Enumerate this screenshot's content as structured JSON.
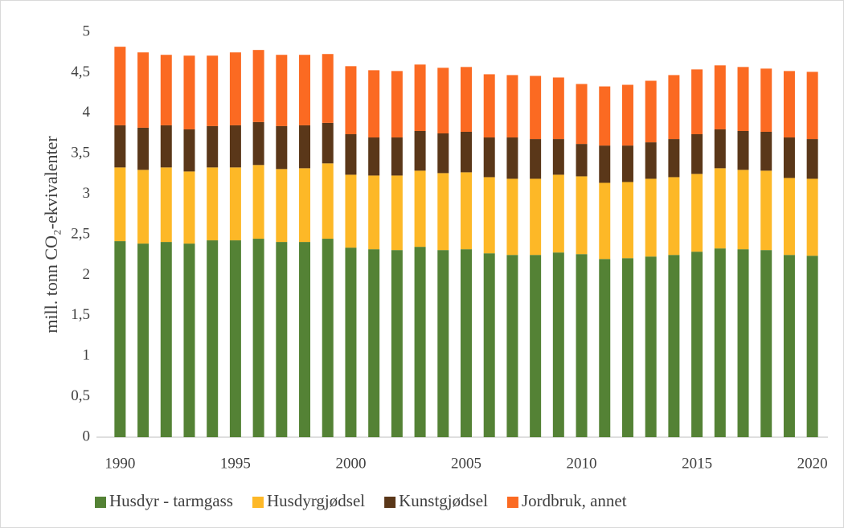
{
  "chart_data": {
    "type": "stacked-bar",
    "y_label": "mill. tonn CO₂-ekvivalenter",
    "categories": [
      "1990",
      null,
      null,
      null,
      null,
      "1995",
      null,
      null,
      null,
      null,
      "2000",
      null,
      null,
      null,
      null,
      "2005",
      null,
      null,
      null,
      null,
      "2010",
      null,
      null,
      null,
      null,
      "2015",
      null,
      null,
      null,
      null,
      "2020"
    ],
    "series": [
      {
        "name": "Husdyr - tarmgass",
        "color": "#548235",
        "values": [
          2.42,
          2.39,
          2.41,
          2.39,
          2.43,
          2.43,
          2.45,
          2.41,
          2.41,
          2.45,
          2.34,
          2.32,
          2.31,
          2.35,
          2.31,
          2.32,
          2.27,
          2.25,
          2.25,
          2.28,
          2.26,
          2.2,
          2.21,
          2.23,
          2.25,
          2.29,
          2.33,
          2.32,
          2.31,
          2.25,
          2.24
        ]
      },
      {
        "name": "Husdyrgjødsel",
        "color": "#fdb827",
        "values": [
          0.91,
          0.91,
          0.92,
          0.89,
          0.9,
          0.9,
          0.91,
          0.9,
          0.91,
          0.93,
          0.9,
          0.91,
          0.92,
          0.94,
          0.95,
          0.95,
          0.94,
          0.94,
          0.94,
          0.96,
          0.96,
          0.94,
          0.94,
          0.96,
          0.96,
          0.96,
          0.99,
          0.98,
          0.98,
          0.95,
          0.95
        ]
      },
      {
        "name": "Kunstgjødsel",
        "color": "#5a3719",
        "values": [
          0.52,
          0.52,
          0.52,
          0.52,
          0.51,
          0.52,
          0.53,
          0.53,
          0.53,
          0.5,
          0.5,
          0.47,
          0.47,
          0.49,
          0.49,
          0.5,
          0.49,
          0.51,
          0.49,
          0.44,
          0.4,
          0.46,
          0.45,
          0.45,
          0.47,
          0.49,
          0.48,
          0.48,
          0.48,
          0.5,
          0.49
        ]
      },
      {
        "name": "Jordbruk, annet",
        "color": "#fb6a22",
        "values": [
          0.97,
          0.93,
          0.87,
          0.91,
          0.87,
          0.9,
          0.89,
          0.88,
          0.87,
          0.85,
          0.84,
          0.83,
          0.82,
          0.82,
          0.81,
          0.8,
          0.78,
          0.77,
          0.78,
          0.76,
          0.74,
          0.73,
          0.75,
          0.76,
          0.79,
          0.8,
          0.79,
          0.79,
          0.78,
          0.82,
          0.83
        ]
      }
    ],
    "ylim": [
      0,
      5
    ],
    "yticks": [
      0,
      {
        "value": 0.5,
        "label": "0,5"
      },
      1,
      {
        "value": 1.5,
        "label": "1,5"
      },
      2,
      {
        "value": 2.5,
        "label": "2,5"
      },
      3,
      {
        "value": 3.5,
        "label": "3,5"
      },
      4,
      {
        "value": 4.5,
        "label": "4,5"
      },
      5
    ],
    "grid": false,
    "legend": "bottom"
  }
}
